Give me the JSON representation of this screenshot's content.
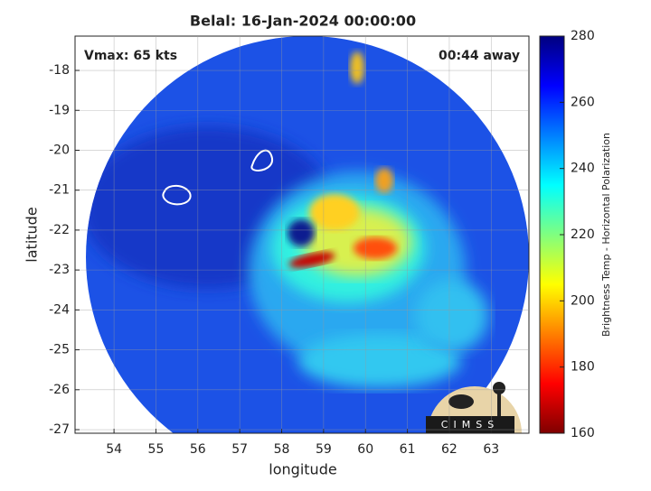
{
  "chart_data": {
    "type": "image",
    "title": "Belal: 16-Jan-2024 00:00:00",
    "annotations": [
      "Vmax: 65 kts",
      "00:44 away"
    ],
    "x_label": "longitude",
    "y_label": "latitude",
    "xlim": [
      53.07,
      63.9
    ],
    "xticks": [
      54,
      55,
      56,
      57,
      58,
      59,
      60,
      61,
      62,
      63
    ],
    "ylim": [
      -27.09,
      -17.14
    ],
    "yticks": [
      -18,
      -19,
      -20,
      -21,
      -22,
      -23,
      -24,
      -25,
      -26,
      -27
    ],
    "grid": true,
    "colorbar": {
      "label": "Brightness Temp - Horizontal Polarization",
      "colormap": "jet",
      "reversed": true,
      "lim": [
        160,
        280
      ],
      "ticks": [
        160,
        180,
        200,
        220,
        240,
        260,
        280
      ]
    },
    "logo": "CIMSS"
  }
}
